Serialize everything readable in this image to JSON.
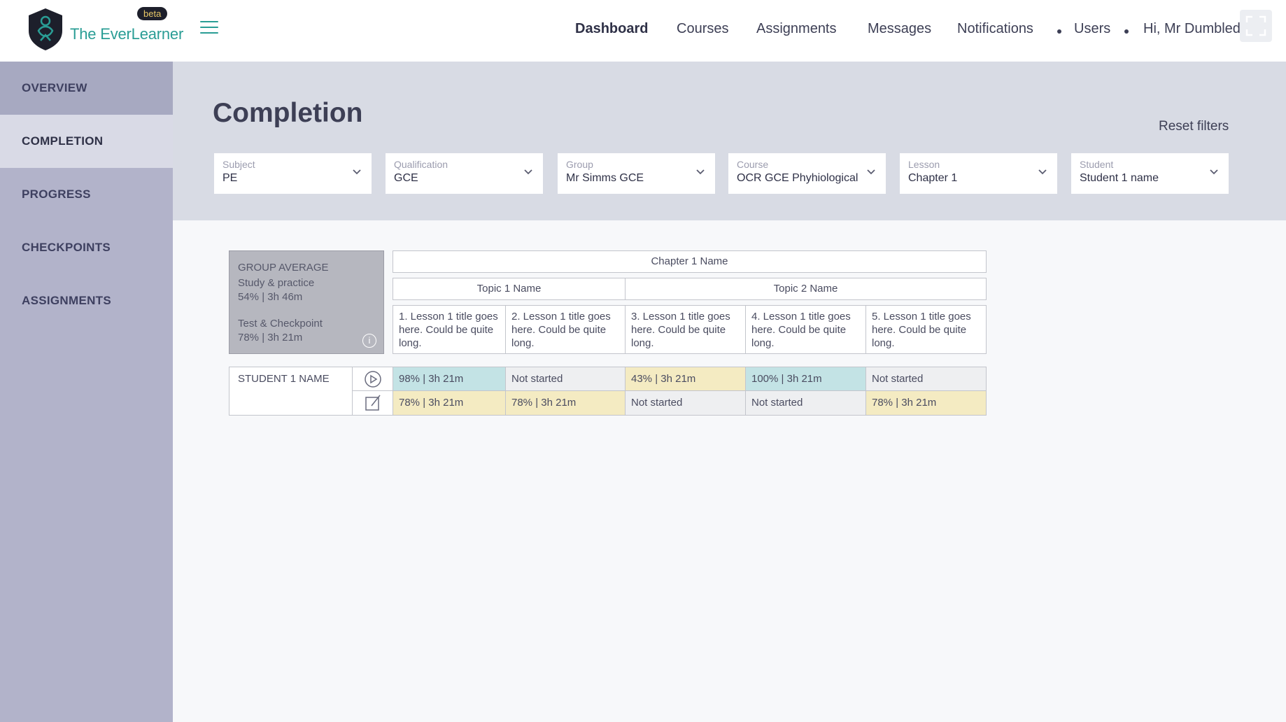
{
  "app": {
    "brand": "The EverLearner",
    "beta_badge": "beta"
  },
  "nav": {
    "items": [
      "Dashboard",
      "Courses",
      "Assignments",
      "Messages",
      "Notifications",
      "Users"
    ],
    "greeting": "Hi, Mr Dumbledore"
  },
  "sidebar": {
    "items": [
      "OVERVIEW",
      "COMPLETION",
      "PROGRESS",
      "CHECKPOINTS",
      "ASSIGNMENTS"
    ]
  },
  "page": {
    "title": "Completion",
    "reset_filters": "Reset filters"
  },
  "filters": [
    {
      "label": "Subject",
      "value": "PE"
    },
    {
      "label": "Qualification",
      "value": "GCE"
    },
    {
      "label": "Group",
      "value": "Mr Simms GCE"
    },
    {
      "label": "Course",
      "value": "OCR GCE Phyhiological"
    },
    {
      "label": "Lesson",
      "value": "Chapter 1"
    },
    {
      "label": "Student",
      "value": "Student 1 name"
    }
  ],
  "group_average": {
    "title": "GROUP AVERAGE",
    "study_label": "Study & practice",
    "study_value": "54% | 3h 46m",
    "test_label": "Test & Checkpoint",
    "test_value": "78% | 3h 21m"
  },
  "table": {
    "chapter": "Chapter 1 Name",
    "topics": [
      "Topic 1 Name",
      "Topic 2 Name"
    ],
    "lessons": [
      "1. Lesson 1 title goes here. Could be quite long.",
      "2. Lesson 1 title goes here. Could be quite long.",
      "3. Lesson 1 title goes here. Could be quite long.",
      "4. Lesson 1 title goes here. Could be quite long.",
      "5. Lesson 1 title goes here. Could be quite long."
    ],
    "student": {
      "name": "STUDENT 1 NAME",
      "study_row": [
        "98% | 3h 21m",
        "Not started",
        "43% | 3h 21m",
        "100% | 3h 21m",
        "Not started"
      ],
      "test_row": [
        "78% | 3h 21m",
        "78% | 3h 21m",
        "Not started",
        "Not started",
        "78% | 3h 21m"
      ]
    }
  },
  "colors": {
    "accent": "#2a9d95",
    "complete": "#c3e3e5",
    "partial": "#f4ebc2",
    "not_started": "#eeeff1",
    "sidebar": "#b2b3ca"
  }
}
